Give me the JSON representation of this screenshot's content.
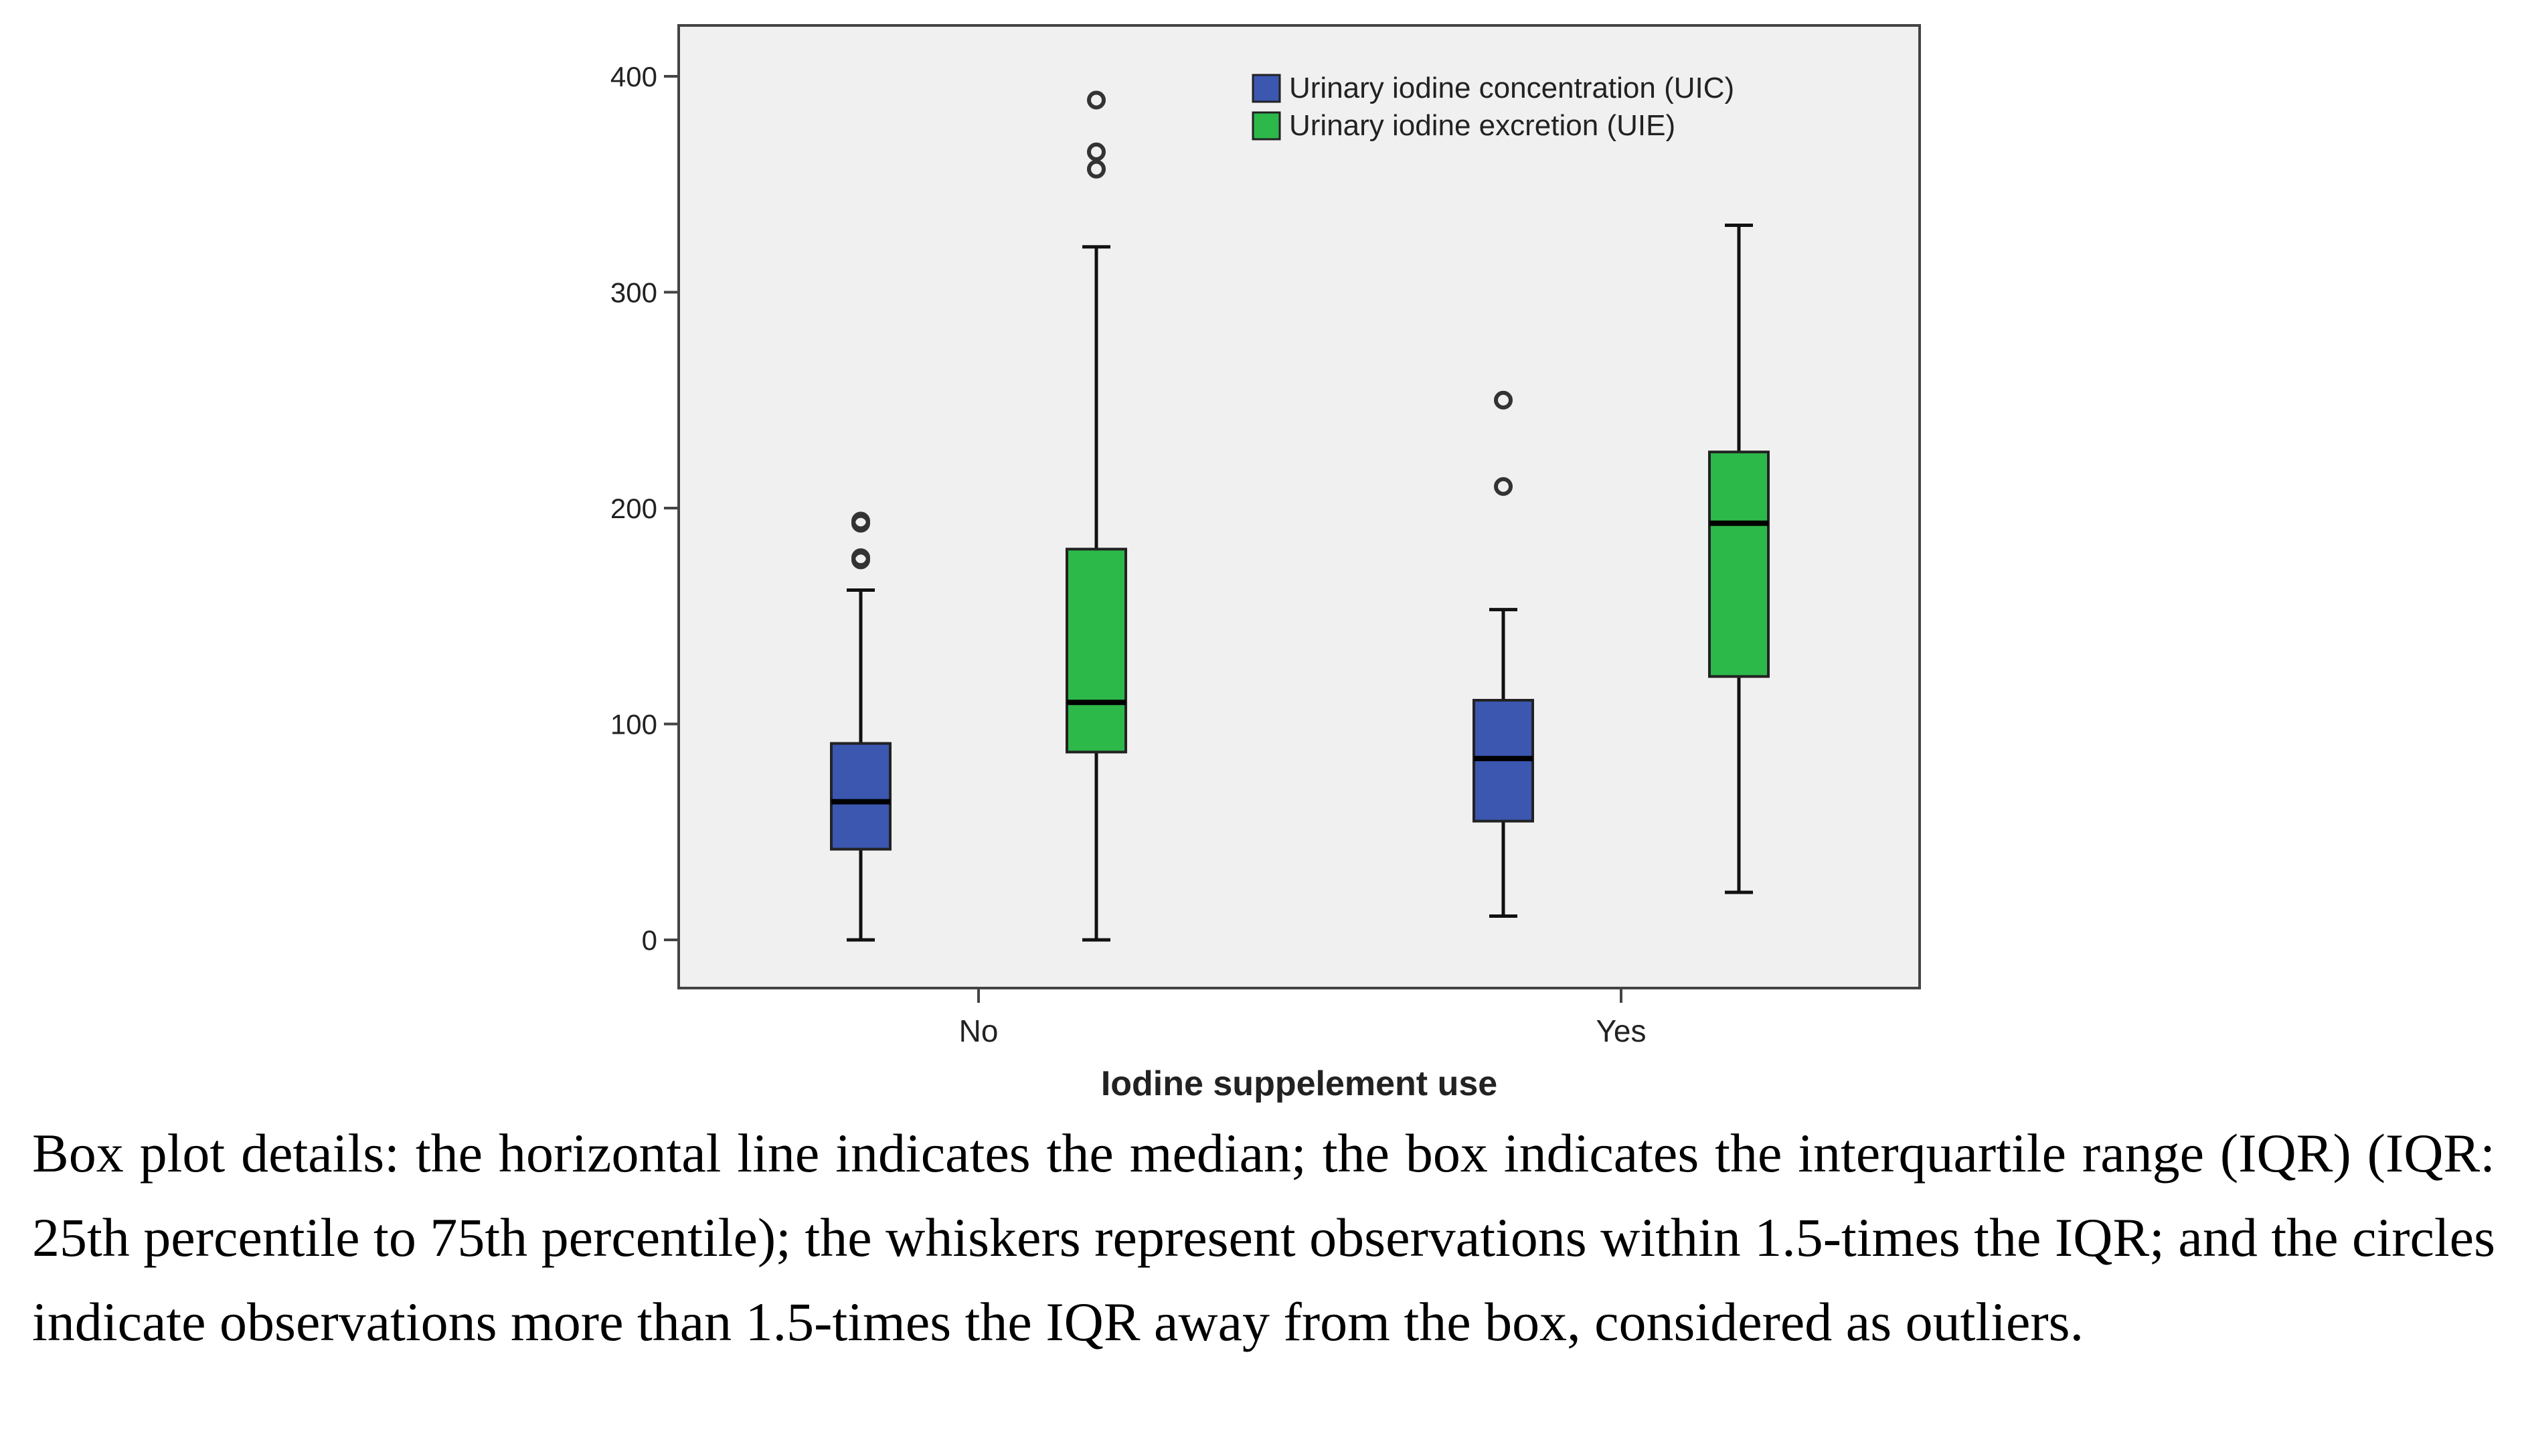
{
  "chart_data": {
    "type": "boxplot",
    "title": "",
    "xlabel": "Iodine suppelement use",
    "ylabel": "",
    "ylim": [
      -20,
      425
    ],
    "yticks": [
      0,
      100,
      200,
      300,
      400
    ],
    "grid": false,
    "legend_position": "top-right",
    "categories": [
      "No",
      "Yes"
    ],
    "series": [
      {
        "name": "Urinary iodine concentration (UIC)",
        "color": "#3b57b0",
        "boxes": [
          {
            "category": "No",
            "min": 0,
            "q1": 42,
            "median": 64,
            "q3": 91,
            "max": 162,
            "outliers": [
              193,
              194,
              176,
              177
            ]
          },
          {
            "category": "Yes",
            "min": 11,
            "q1": 55,
            "median": 84,
            "q3": 111,
            "max": 153,
            "outliers": [
              250,
              210
            ]
          }
        ]
      },
      {
        "name": "Urinary iodine excretion (UIE)",
        "color": "#2db84a",
        "boxes": [
          {
            "category": "No",
            "min": 0,
            "q1": 87,
            "median": 110,
            "q3": 181,
            "max": 321,
            "outliers": [
              389,
              365,
              357
            ]
          },
          {
            "category": "Yes",
            "min": 22,
            "q1": 122,
            "median": 193,
            "q3": 226,
            "max": 331,
            "outliers": []
          }
        ]
      }
    ]
  },
  "caption": "Box plot details: the horizontal line indicates the median; the box indicates the interquartile range (IQR) (IQR: 25th percentile to 75th percentile); the whiskers represent observations within 1.5-times the IQR; and the circles indicate observations more than 1.5-times the IQR away from the box, considered as outliers."
}
